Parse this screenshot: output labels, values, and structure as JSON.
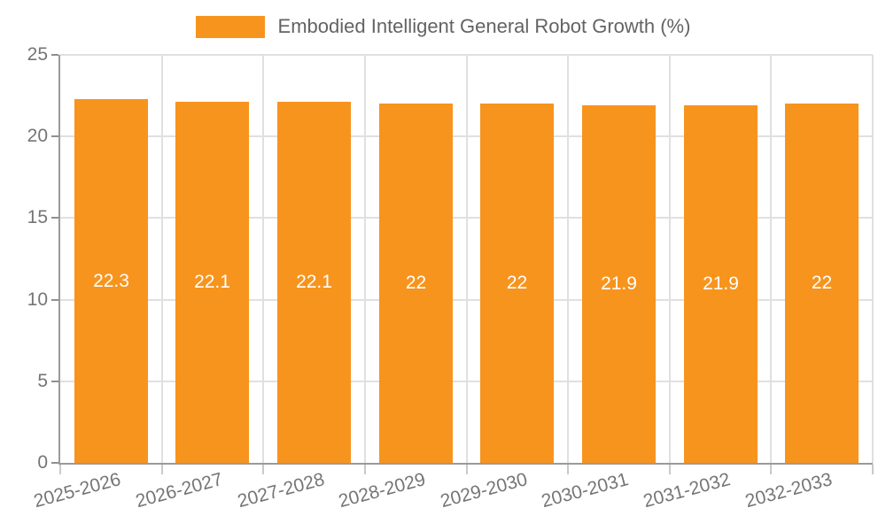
{
  "chart_data": {
    "type": "bar",
    "title": "Embodied Intelligent General Robot Growth (%)",
    "legend": {
      "label": "Embodied Intelligent General Robot Growth (%)",
      "position": "top-center"
    },
    "categories": [
      "2025-2026",
      "2026-2027",
      "2027-2028",
      "2028-2029",
      "2029-2030",
      "2030-2031",
      "2031-2032",
      "2032-2033"
    ],
    "values": [
      22.3,
      22.1,
      22.1,
      22,
      22,
      21.9,
      21.9,
      22
    ],
    "value_labels": [
      "22.3",
      "22.1",
      "22.1",
      "22",
      "22",
      "21.9",
      "21.9",
      "22"
    ],
    "xlabel": "",
    "ylabel": "",
    "ylim": [
      0,
      25
    ],
    "yticks": [
      0,
      5,
      10,
      15,
      20,
      25
    ],
    "ytick_labels": [
      "0",
      "5",
      "10",
      "15",
      "20",
      "25"
    ],
    "grid": true,
    "x_label_rotation_deg": -15,
    "colors": {
      "bar": "#F7941E",
      "value_label": "#FFFFFF",
      "grid_line": "#E0E0E0",
      "axis_line": "#9A9A9A",
      "tick_mark": "#C9C9C9",
      "y_tick_mark": "#8F8F8F",
      "tick_label": "#757575",
      "title": "#636363"
    }
  }
}
